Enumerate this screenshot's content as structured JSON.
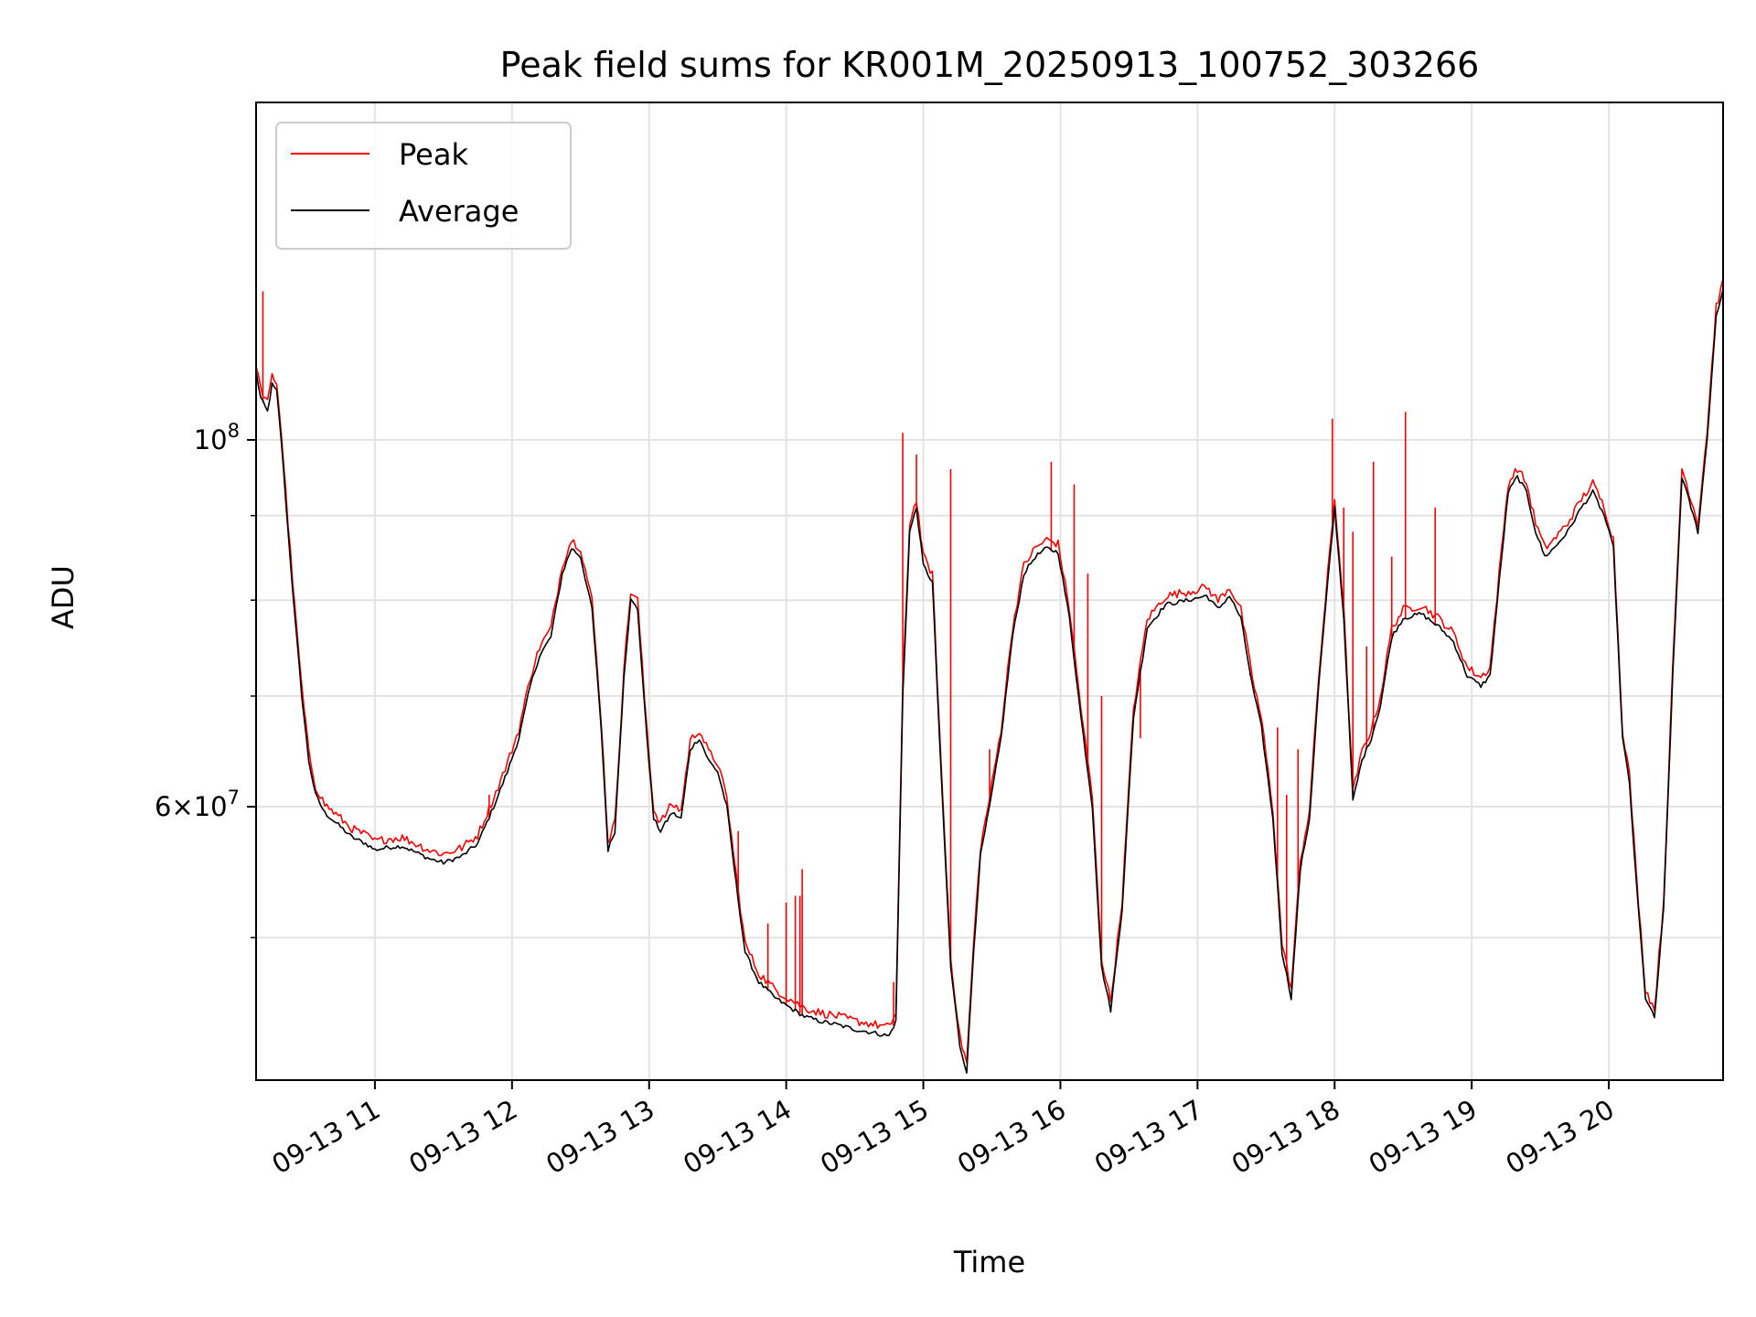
{
  "chart_data": {
    "type": "line",
    "title": "Peak field sums for KR001M_20250913_100752_303266",
    "xlabel": "Time",
    "ylabel": "ADU",
    "x_axis": {
      "kind": "time",
      "range": [
        "2025-09-13T10:08",
        "2025-09-13T20:50"
      ],
      "tick_labels": [
        "09-13 11",
        "09-13 12",
        "09-13 13",
        "09-13 14",
        "09-13 15",
        "09-13 16",
        "09-13 17",
        "09-13 18",
        "09-13 19",
        "09-13 20"
      ],
      "tick_hours": [
        11,
        12,
        13,
        14,
        15,
        16,
        17,
        18,
        19,
        20
      ]
    },
    "y_axis": {
      "scale": "log",
      "range": [
        41000000,
        160000000
      ],
      "labeled_ticks": [
        {
          "value": 60000000,
          "mantissa": "6",
          "exp": "7"
        },
        {
          "value": 100000000,
          "mantissa": "",
          "exp": "8"
        }
      ],
      "minor_ticks": [
        50000000,
        70000000,
        80000000,
        90000000
      ]
    },
    "grid": true,
    "legend_position": "upper-left",
    "series": [
      {
        "name": "Peak",
        "color": "#ff0000"
      },
      {
        "name": "Average",
        "color": "#000000"
      }
    ],
    "average_points": [
      [
        "10:08",
        110000000
      ],
      [
        "10:10",
        106000000
      ],
      [
        "10:13",
        104000000
      ],
      [
        "10:15",
        108000000
      ],
      [
        "10:17",
        107000000
      ],
      [
        "10:19",
        100000000
      ],
      [
        "10:22",
        88000000
      ],
      [
        "10:25",
        78000000
      ],
      [
        "10:28",
        70000000
      ],
      [
        "10:31",
        64000000
      ],
      [
        "10:34",
        61000000
      ],
      [
        "10:38",
        59500000
      ],
      [
        "10:44",
        58500000
      ],
      [
        "10:50",
        57500000
      ],
      [
        "10:56",
        57000000
      ],
      [
        "11:00",
        56500000
      ],
      [
        "11:06",
        56700000
      ],
      [
        "11:12",
        56800000
      ],
      [
        "11:18",
        56300000
      ],
      [
        "11:24",
        55800000
      ],
      [
        "11:30",
        55500000
      ],
      [
        "11:38",
        56000000
      ],
      [
        "11:45",
        57000000
      ],
      [
        "11:52",
        60000000
      ],
      [
        "11:58",
        63000000
      ],
      [
        "12:03",
        66000000
      ],
      [
        "12:08",
        71000000
      ],
      [
        "12:12",
        74000000
      ],
      [
        "12:17",
        76000000
      ],
      [
        "12:22",
        83000000
      ],
      [
        "12:26",
        86000000
      ],
      [
        "12:30",
        85000000
      ],
      [
        "12:35",
        79000000
      ],
      [
        "12:39",
        67000000
      ],
      [
        "12:42",
        56500000
      ],
      [
        "12:45",
        58000000
      ],
      [
        "12:49",
        72000000
      ],
      [
        "12:52",
        80000000
      ],
      [
        "12:55",
        79000000
      ],
      [
        "12:58",
        69000000
      ],
      [
        "13:02",
        59000000
      ],
      [
        "13:05",
        58000000
      ],
      [
        "13:10",
        59500000
      ],
      [
        "13:14",
        59000000
      ],
      [
        "13:18",
        65000000
      ],
      [
        "13:22",
        66000000
      ],
      [
        "13:26",
        64000000
      ],
      [
        "13:30",
        63000000
      ],
      [
        "13:34",
        60000000
      ],
      [
        "13:38",
        54000000
      ],
      [
        "13:42",
        49000000
      ],
      [
        "13:48",
        47000000
      ],
      [
        "13:55",
        46000000
      ],
      [
        "14:00",
        45500000
      ],
      [
        "14:08",
        44800000
      ],
      [
        "14:15",
        44500000
      ],
      [
        "14:22",
        44300000
      ],
      [
        "14:30",
        44000000
      ],
      [
        "14:38",
        43800000
      ],
      [
        "14:45",
        43600000
      ],
      [
        "14:48",
        44500000
      ],
      [
        "14:51",
        70000000
      ],
      [
        "14:54",
        88000000
      ],
      [
        "14:57",
        91000000
      ],
      [
        "15:00",
        84000000
      ],
      [
        "15:04",
        82000000
      ],
      [
        "15:08",
        62000000
      ],
      [
        "15:12",
        48000000
      ],
      [
        "15:16",
        43000000
      ],
      [
        "15:19",
        41500000
      ],
      [
        "15:22",
        49000000
      ],
      [
        "15:25",
        56000000
      ],
      [
        "15:29",
        60000000
      ],
      [
        "15:34",
        66000000
      ],
      [
        "15:39",
        76000000
      ],
      [
        "15:44",
        83000000
      ],
      [
        "15:49",
        85000000
      ],
      [
        "15:54",
        86000000
      ],
      [
        "15:59",
        85500000
      ],
      [
        "16:04",
        78000000
      ],
      [
        "16:09",
        68000000
      ],
      [
        "16:14",
        60000000
      ],
      [
        "16:18",
        48000000
      ],
      [
        "16:22",
        45200000
      ],
      [
        "16:27",
        52000000
      ],
      [
        "16:32",
        68000000
      ],
      [
        "16:38",
        77000000
      ],
      [
        "16:46",
        79500000
      ],
      [
        "16:56",
        80000000
      ],
      [
        "17:04",
        80500000
      ],
      [
        "17:09",
        79000000
      ],
      [
        "17:14",
        80500000
      ],
      [
        "17:19",
        78000000
      ],
      [
        "17:24",
        71000000
      ],
      [
        "17:28",
        67000000
      ],
      [
        "17:33",
        59000000
      ],
      [
        "17:37",
        49000000
      ],
      [
        "17:41",
        46000000
      ],
      [
        "17:45",
        55000000
      ],
      [
        "17:49",
        59000000
      ],
      [
        "17:53",
        71000000
      ],
      [
        "17:57",
        82000000
      ],
      [
        "18:00",
        91000000
      ],
      [
        "18:04",
        78000000
      ],
      [
        "18:08",
        60500000
      ],
      [
        "18:12",
        64000000
      ],
      [
        "18:16",
        66000000
      ],
      [
        "18:20",
        69000000
      ],
      [
        "18:25",
        76000000
      ],
      [
        "18:30",
        78000000
      ],
      [
        "18:38",
        78500000
      ],
      [
        "18:46",
        77000000
      ],
      [
        "18:52",
        75500000
      ],
      [
        "18:58",
        72000000
      ],
      [
        "19:04",
        71000000
      ],
      [
        "19:08",
        72000000
      ],
      [
        "19:12",
        82000000
      ],
      [
        "19:16",
        93000000
      ],
      [
        "19:20",
        95000000
      ],
      [
        "19:24",
        93000000
      ],
      [
        "19:28",
        88000000
      ],
      [
        "19:32",
        85000000
      ],
      [
        "19:36",
        86000000
      ],
      [
        "19:42",
        88000000
      ],
      [
        "19:48",
        91000000
      ],
      [
        "19:53",
        93000000
      ],
      [
        "19:58",
        90000000
      ],
      [
        "20:02",
        86000000
      ],
      [
        "20:06",
        66000000
      ],
      [
        "20:09",
        62000000
      ],
      [
        "20:12",
        54000000
      ],
      [
        "20:16",
        46000000
      ],
      [
        "20:20",
        44700000
      ],
      [
        "20:24",
        52000000
      ],
      [
        "20:28",
        72000000
      ],
      [
        "20:32",
        95000000
      ],
      [
        "20:35",
        92000000
      ],
      [
        "20:39",
        88000000
      ],
      [
        "20:43",
        100000000
      ],
      [
        "20:47",
        119000000
      ],
      [
        "20:50",
        123000000
      ]
    ],
    "peak_spikes": [
      [
        "10:11",
        123000000
      ],
      [
        "11:50",
        61000000
      ],
      [
        "13:39",
        58000000
      ],
      [
        "13:52",
        51000000
      ],
      [
        "14:00",
        52500000
      ],
      [
        "14:04",
        53000000
      ],
      [
        "14:06",
        53000000
      ],
      [
        "14:07",
        55000000
      ],
      [
        "14:47",
        47000000
      ],
      [
        "14:51",
        101000000
      ],
      [
        "14:57",
        98000000
      ],
      [
        "15:12",
        96000000
      ],
      [
        "15:29",
        65000000
      ],
      [
        "15:56",
        97000000
      ],
      [
        "16:06",
        94000000
      ],
      [
        "16:12",
        83000000
      ],
      [
        "16:18",
        70000000
      ],
      [
        "16:35",
        66000000
      ],
      [
        "17:23",
        72000000
      ],
      [
        "17:35",
        67000000
      ],
      [
        "17:39",
        61000000
      ],
      [
        "17:44",
        65000000
      ],
      [
        "17:59",
        103000000
      ],
      [
        "18:04",
        91000000
      ],
      [
        "18:08",
        88000000
      ],
      [
        "18:14",
        75000000
      ],
      [
        "18:17",
        97000000
      ],
      [
        "18:25",
        85000000
      ],
      [
        "18:31",
        104000000
      ],
      [
        "18:44",
        91000000
      ]
    ]
  }
}
